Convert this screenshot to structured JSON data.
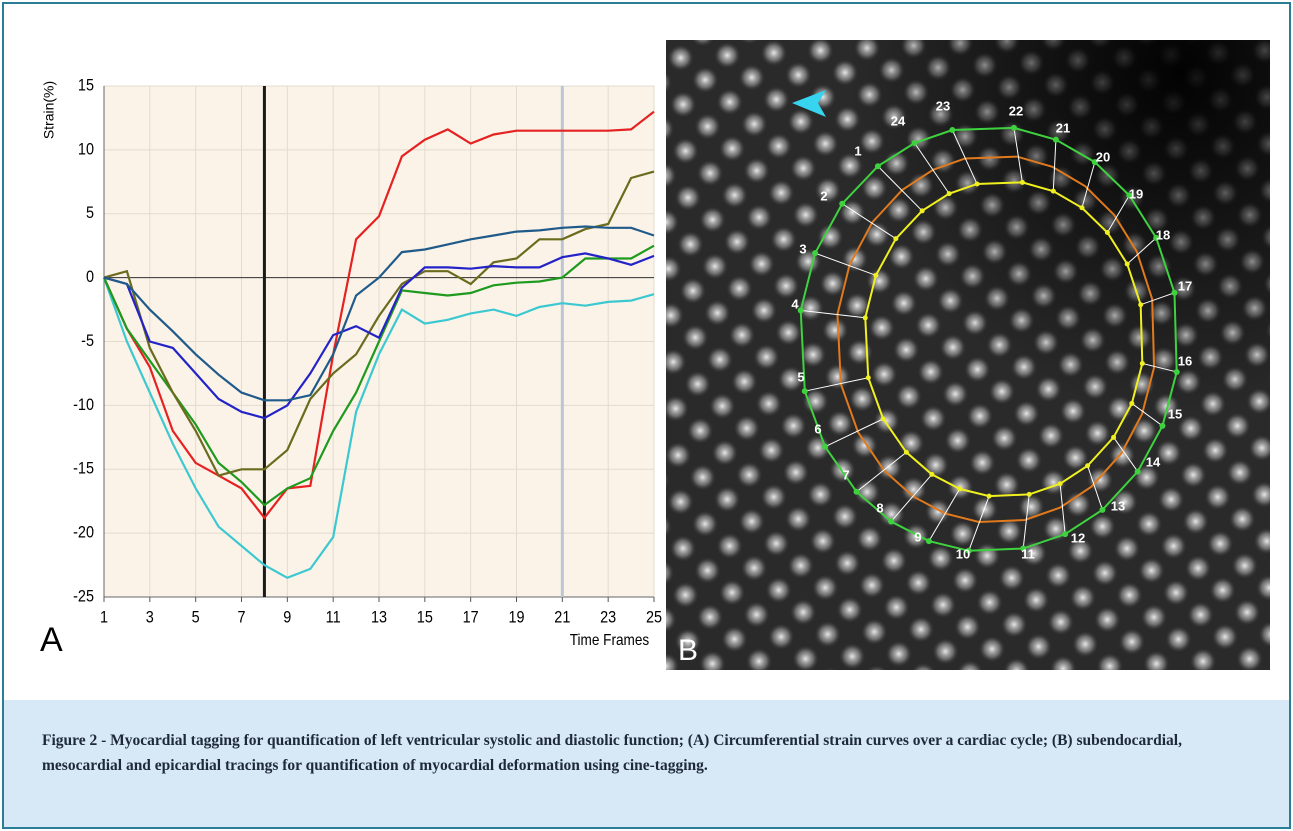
{
  "chart_data": {
    "type": "line",
    "ylabel": "Strain(%)",
    "xlabel": "Time Frames",
    "x": [
      1,
      2,
      3,
      4,
      5,
      6,
      7,
      8,
      9,
      10,
      11,
      12,
      13,
      14,
      15,
      16,
      17,
      18,
      19,
      20,
      21,
      22,
      23,
      24,
      25
    ],
    "xlim": [
      1,
      25
    ],
    "xticks": [
      1,
      3,
      5,
      7,
      9,
      11,
      13,
      15,
      17,
      19,
      21,
      23,
      25
    ],
    "ylim": [
      -25,
      15
    ],
    "yticks": [
      -25,
      -20,
      -15,
      -10,
      -5,
      0,
      5,
      10,
      15
    ],
    "grid": true,
    "vlines": [
      {
        "value": 8,
        "color": "#1a1a1a"
      },
      {
        "value": 21,
        "color": "#b9c6d6"
      }
    ],
    "series": [
      {
        "color": "#e52222",
        "values": [
          0,
          -4,
          -7,
          -12,
          -14.5,
          -15.5,
          -16.5,
          -18.8,
          -16.5,
          -16.3,
          -6,
          3,
          4.8,
          9.5,
          10.8,
          11.6,
          10.5,
          11.2,
          11.5,
          11.5,
          11.5,
          11.5,
          11.5,
          11.6,
          13
        ]
      },
      {
        "color": "#3cc8d0",
        "values": [
          0,
          -5,
          -9,
          -13,
          -16.5,
          -19.5,
          -21,
          -22.5,
          -23.5,
          -22.8,
          -20.3,
          -10.5,
          -6,
          -2.5,
          -3.6,
          -3.3,
          -2.8,
          -2.5,
          -3,
          -2.3,
          -2,
          -2.2,
          -1.9,
          -1.8,
          -1.3
        ]
      },
      {
        "color": "#1e9a1e",
        "values": [
          0,
          -4,
          -6.5,
          -9,
          -11.5,
          -14.5,
          -16,
          -17.8,
          -16.5,
          -15.7,
          -12,
          -9,
          -5,
          -1,
          -1.2,
          -1.4,
          -1.2,
          -0.6,
          -0.4,
          -0.3,
          0,
          1.5,
          1.5,
          1.5,
          2.5
        ]
      },
      {
        "color": "#6b6b1e",
        "values": [
          0,
          0.5,
          -5.5,
          -9,
          -12,
          -15.5,
          -15,
          -15,
          -13.5,
          -9.5,
          -7.5,
          -6,
          -3,
          -0.5,
          0.5,
          0.5,
          -0.5,
          1.2,
          1.5,
          3,
          3,
          3.8,
          4.2,
          7.8,
          8.3
        ]
      },
      {
        "color": "#2323c8",
        "values": [
          0,
          -0.5,
          -5,
          -5.5,
          -7.5,
          -9.5,
          -10.5,
          -11,
          -10,
          -7.5,
          -4.5,
          -3.8,
          -4.7,
          -0.8,
          0.8,
          0.8,
          0.7,
          0.9,
          0.8,
          0.8,
          1.6,
          1.9,
          1.5,
          1,
          1.7
        ]
      },
      {
        "color": "#1f5a8a",
        "values": [
          0,
          -0.5,
          -2.5,
          -4.2,
          -6,
          -7.6,
          -9,
          -9.6,
          -9.6,
          -9.2,
          -6,
          -1.4,
          0,
          2,
          2.2,
          2.6,
          3,
          3.3,
          3.6,
          3.7,
          3.9,
          4,
          3.9,
          3.9,
          3.3
        ]
      }
    ]
  },
  "panel_labels": [
    "A",
    "B"
  ],
  "point_labels": [
    "1",
    "2",
    "3",
    "4",
    "5",
    "6",
    "7",
    "8",
    "9",
    "10",
    "11",
    "12",
    "13",
    "14",
    "15",
    "16",
    "17",
    "18",
    "19",
    "20",
    "21",
    "22",
    "23",
    "24"
  ],
  "caption": "Figure 2 - Myocardial tagging for quantification of left ventricular systolic and diastolic function; (A) Circumferential strain curves over a cardiac cycle; (B) subendocardial, mesocardial and epicardial tracings for quantification of myocardial deformation using cine-tagging."
}
